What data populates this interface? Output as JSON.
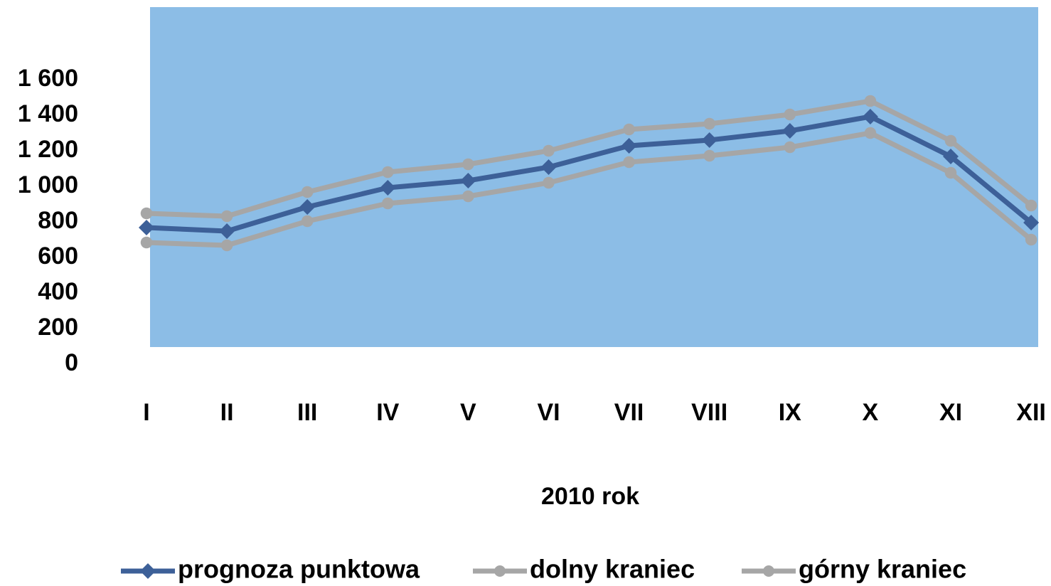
{
  "chart_data": {
    "type": "line",
    "categories": [
      "I",
      "II",
      "III",
      "IV",
      "V",
      "VI",
      "VII",
      "VIII",
      "IX",
      "X",
      "XI",
      "XII"
    ],
    "x_label": "2010 rok",
    "series": [
      {
        "name": "prognoza punktowa",
        "color": "#3d6098",
        "marker": "diamond",
        "values": [
          768,
          748,
          884,
          992,
          1032,
          1108,
          1228,
          1260,
          1312,
          1392,
          1168,
          796
        ]
      },
      {
        "name": "dolny kraniec",
        "color": "#a6a6a6",
        "marker": "circle",
        "values": [
          684,
          668,
          804,
          904,
          944,
          1020,
          1136,
          1172,
          1220,
          1300,
          1076,
          700
        ]
      },
      {
        "name": "górny kraniec",
        "color": "#a6a6a6",
        "marker": "circle",
        "values": [
          848,
          832,
          968,
          1080,
          1124,
          1200,
          1320,
          1352,
          1404,
          1480,
          1256,
          892
        ]
      }
    ],
    "ylim": [
      0,
      2000
    ],
    "yticks": [
      0,
      200,
      400,
      600,
      800,
      {
        "value": 1000,
        "label": "1 000"
      },
      {
        "value": 1200,
        "label": "1 200"
      },
      {
        "value": 1400,
        "label": "1 400"
      },
      {
        "value": 1600,
        "label": "1 600"
      }
    ],
    "legend": "bottom",
    "plot_background": "#8cbde6"
  }
}
